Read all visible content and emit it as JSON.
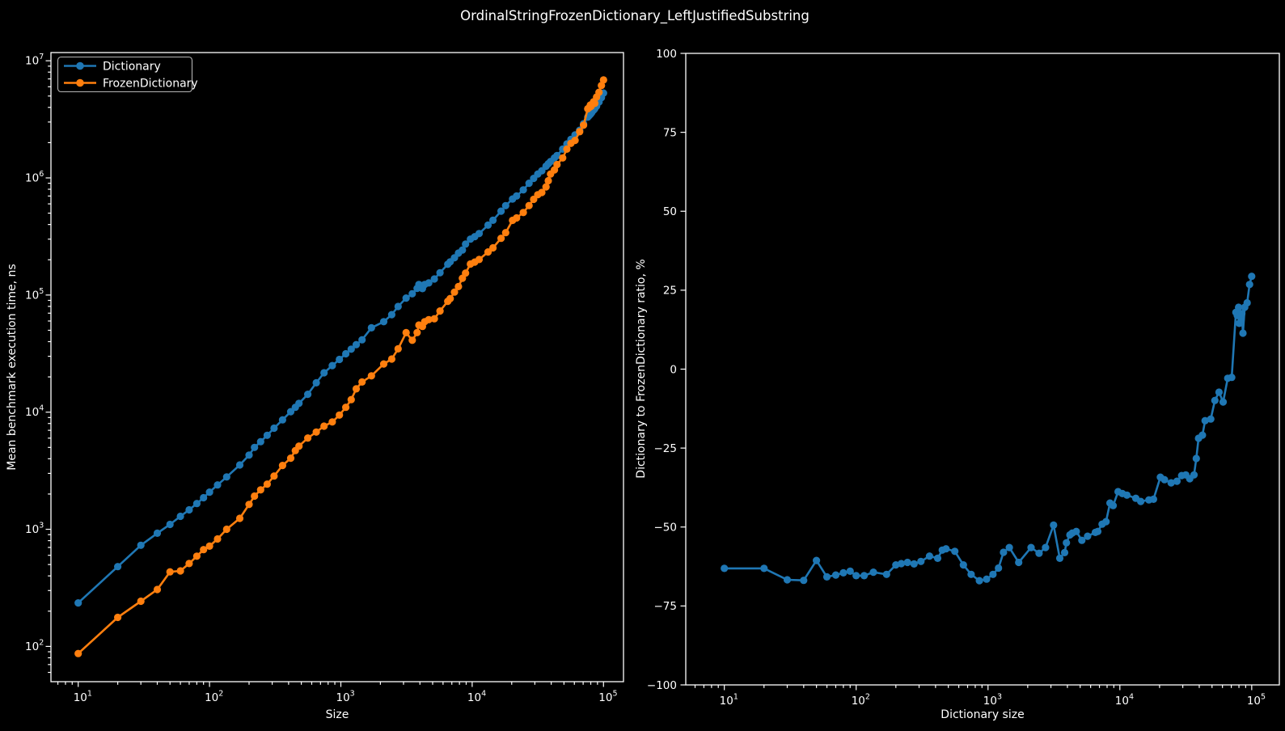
{
  "title": "OrdinalStringFrozenDictionary_LeftJustifiedSubstring",
  "colors": {
    "background": "#000000",
    "foreground": "#ffffff",
    "dictionary_series": "#1f77b4",
    "frozen_dictionary_series": "#ff7f0e",
    "legend_border": "#b4b4b4"
  },
  "legend": {
    "items": [
      {
        "label": "Dictionary",
        "color": "#1f77b4"
      },
      {
        "label": "FrozenDictionary",
        "color": "#ff7f0e"
      }
    ]
  },
  "chart_data": [
    {
      "type": "line",
      "title": "",
      "xlabel": "Size",
      "ylabel": "Mean benchmark execution time, ns",
      "x_scale": "log",
      "y_scale": "log",
      "xlim": [
        6.2,
        142000
      ],
      "ylim": [
        50,
        11750000
      ],
      "x_tick_exponents": [
        1,
        2,
        3,
        4,
        5
      ],
      "y_tick_exponents": [
        2,
        3,
        4,
        5,
        6,
        7
      ],
      "grid": false,
      "legend_position": "upper left",
      "x": [
        10,
        20,
        30,
        40,
        50,
        60,
        70,
        80,
        90,
        100,
        115,
        135,
        170,
        200,
        220,
        245,
        275,
        310,
        360,
        415,
        450,
        480,
        560,
        650,
        745,
        860,
        975,
        1090,
        1200,
        1310,
        1450,
        1710,
        2120,
        2440,
        2730,
        3140,
        3500,
        3810,
        3930,
        4180,
        4350,
        4670,
        5150,
        5690,
        6520,
        6800,
        7330,
        7860,
        8420,
        8900,
        9700,
        10450,
        11300,
        13200,
        14400,
        16600,
        18000,
        20300,
        21800,
        24500,
        27100,
        29400,
        31600,
        33900,
        36500,
        38000,
        39500,
        42300,
        44300,
        48900,
        52600,
        56500,
        60700,
        65800,
        70500,
        75900,
        77700,
        79500,
        80400,
        81300,
        83200,
        84100,
        85800,
        88500,
        92400,
        96400,
        100000
      ],
      "series": [
        {
          "name": "Dictionary",
          "color": "#1f77b4",
          "values": [
            235,
            480,
            730,
            925,
            1100,
            1290,
            1465,
            1660,
            1860,
            2075,
            2390,
            2800,
            3540,
            4300,
            5000,
            5600,
            6350,
            7300,
            8600,
            10100,
            11000,
            11900,
            14200,
            17800,
            21700,
            25000,
            28200,
            31500,
            34500,
            37700,
            41500,
            52500,
            59200,
            68000,
            79800,
            94200,
            102500,
            114000,
            123000,
            113500,
            123000,
            126800,
            137000,
            155000,
            183000,
            192000,
            208000,
            228000,
            242000,
            272000,
            300000,
            315000,
            335000,
            395000,
            435000,
            520000,
            580000,
            660000,
            700000,
            790000,
            900000,
            990000,
            1080000,
            1150000,
            1260000,
            1320000,
            1380000,
            1480000,
            1550000,
            1760000,
            1950000,
            2130000,
            2330000,
            2550000,
            2900000,
            3300000,
            3400000,
            3500000,
            3560000,
            3620000,
            3750000,
            3800000,
            3900000,
            4100000,
            4450000,
            4850000,
            5300000
          ]
        },
        {
          "name": "FrozenDictionary",
          "color": "#ff7f0e",
          "values": [
            87,
            177,
            243,
            306,
            433,
            441,
            510,
            589,
            670,
            718,
            827,
            1000,
            1240,
            1630,
            1920,
            2170,
            2430,
            2850,
            3510,
            4050,
            4700,
            5130,
            6010,
            6760,
            7600,
            8250,
            9450,
            11000,
            12800,
            15800,
            18100,
            20400,
            25800,
            28400,
            34700,
            47700,
            41100,
            47800,
            55400,
            53900,
            59200,
            61600,
            62700,
            73000,
            88400,
            93300,
            106000,
            118000,
            139000,
            154000,
            184000,
            191000,
            201000,
            233000,
            253000,
            305000,
            341000,
            434000,
            455000,
            506000,
            581000,
            656000,
            718000,
            751000,
            838000,
            946000,
            1080000,
            1170000,
            1300000,
            1480000,
            1760000,
            1970000,
            2090000,
            2480000,
            2820000,
            3890000,
            3980000,
            4190000,
            4080000,
            4230000,
            4340000,
            4470000,
            4340000,
            4900000,
            5380000,
            6150000,
            6860000
          ]
        }
      ]
    },
    {
      "type": "line",
      "title": "",
      "xlabel": "Dictionary size",
      "ylabel": "Dictionary to FrozenDictionary ratio, %",
      "x_scale": "log",
      "y_scale": "linear",
      "xlim": [
        5.1,
        162000
      ],
      "ylim": [
        -100,
        100
      ],
      "x_tick_exponents": [
        1,
        2,
        3,
        4,
        5
      ],
      "y_ticks": [
        {
          "value": 100,
          "label": "100"
        },
        {
          "value": 75,
          "label": "75"
        },
        {
          "value": 50,
          "label": "50"
        },
        {
          "value": 25,
          "label": "25"
        },
        {
          "value": 0,
          "label": "0"
        },
        {
          "value": -25,
          "label": "−25"
        },
        {
          "value": -50,
          "label": "−50"
        },
        {
          "value": -75,
          "label": "−75"
        },
        {
          "value": -100,
          "label": "−100"
        }
      ],
      "grid": false,
      "x": [
        10,
        20,
        30,
        40,
        50,
        60,
        70,
        80,
        90,
        100,
        115,
        135,
        170,
        200,
        220,
        245,
        275,
        310,
        360,
        415,
        450,
        480,
        560,
        650,
        745,
        860,
        975,
        1090,
        1200,
        1310,
        1450,
        1710,
        2120,
        2440,
        2730,
        3140,
        3500,
        3810,
        3930,
        4180,
        4350,
        4670,
        5150,
        5690,
        6520,
        6800,
        7330,
        7860,
        8420,
        8900,
        9700,
        10450,
        11300,
        13200,
        14400,
        16600,
        18000,
        20300,
        21800,
        24500,
        27100,
        29400,
        31600,
        33900,
        36500,
        38000,
        39500,
        42300,
        44300,
        48900,
        52600,
        56500,
        60700,
        65800,
        70500,
        75900,
        77700,
        79500,
        80400,
        81300,
        83200,
        84100,
        85800,
        88500,
        92400,
        96400,
        100000
      ],
      "series": [
        {
          "name": "Dictionary to FrozenDictionary ratio",
          "color": "#1f77b4",
          "values": [
            -63.1,
            -63.1,
            -66.7,
            -66.9,
            -60.6,
            -65.8,
            -65.2,
            -64.5,
            -64.0,
            -65.4,
            -65.4,
            -64.3,
            -65.0,
            -62.0,
            -61.6,
            -61.2,
            -61.7,
            -60.9,
            -59.2,
            -59.9,
            -57.3,
            -56.9,
            -57.7,
            -62.0,
            -65.0,
            -67.0,
            -66.5,
            -65.0,
            -63.0,
            -58.0,
            -56.5,
            -61.2,
            -56.5,
            -58.3,
            -56.5,
            -49.4,
            -59.9,
            -58.1,
            -55.0,
            -52.5,
            -51.9,
            -51.4,
            -54.2,
            -52.9,
            -51.7,
            -51.4,
            -49.1,
            -48.3,
            -42.4,
            -43.2,
            -38.8,
            -39.4,
            -39.9,
            -40.9,
            -41.9,
            -41.4,
            -41.2,
            -34.2,
            -35.0,
            -36.0,
            -35.5,
            -33.7,
            -33.5,
            -34.7,
            -33.5,
            -28.3,
            -21.9,
            -20.9,
            -16.3,
            -15.8,
            -9.9,
            -7.3,
            -10.4,
            -2.9,
            -2.6,
            18.0,
            17.0,
            19.6,
            14.5,
            16.9,
            15.8,
            17.6,
            11.4,
            19.6,
            21.0,
            26.8,
            29.4
          ]
        }
      ]
    }
  ]
}
